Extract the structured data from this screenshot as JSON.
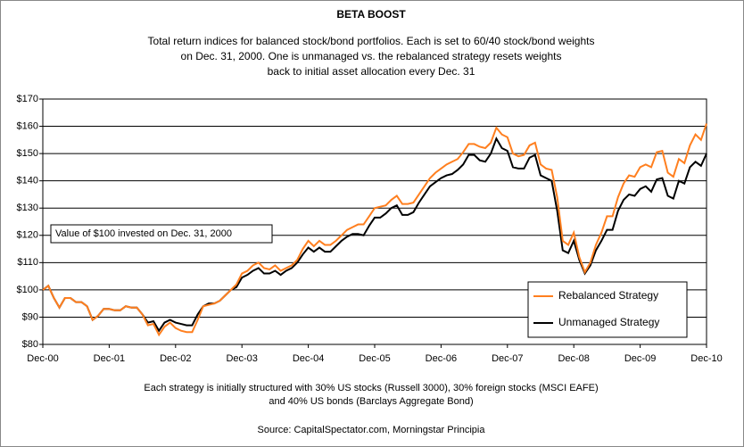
{
  "chart_data": {
    "type": "line",
    "title": "BETA BOOST",
    "subtitle": [
      "Total return indices for balanced stock/bond portfolios. Each is set to 60/40 stock/bond weights",
      "on Dec. 31, 2000. One is unmanaged vs. the rebalanced strategy resets weights",
      "back to initial asset allocation every Dec. 31"
    ],
    "annotation": "Value of $100 invested on Dec. 31, 2000",
    "footnote": [
      "Each strategy is initially structured with 30% US stocks (Russell 3000), 30% foreign stocks (MSCI EAFE)",
      "and 40% US bonds (Barclays Aggregate Bond)"
    ],
    "source": "Source: CapitalSpectator.com, Morningstar Principia",
    "categories": [
      "Dec-00",
      null,
      null,
      null,
      null,
      null,
      null,
      null,
      null,
      null,
      null,
      null,
      "Dec-01",
      null,
      null,
      null,
      null,
      null,
      null,
      null,
      null,
      null,
      null,
      null,
      "Dec-02",
      null,
      null,
      null,
      null,
      null,
      null,
      null,
      null,
      null,
      null,
      null,
      "Dec-03",
      null,
      null,
      null,
      null,
      null,
      null,
      null,
      null,
      null,
      null,
      null,
      "Dec-04",
      null,
      null,
      null,
      null,
      null,
      null,
      null,
      null,
      null,
      null,
      null,
      "Dec-05",
      null,
      null,
      null,
      null,
      null,
      null,
      null,
      null,
      null,
      null,
      null,
      "Dec-06",
      null,
      null,
      null,
      null,
      null,
      null,
      null,
      null,
      null,
      null,
      null,
      "Dec-07",
      null,
      null,
      null,
      null,
      null,
      null,
      null,
      null,
      null,
      null,
      null,
      "Dec-08",
      null,
      null,
      null,
      null,
      null,
      null,
      null,
      null,
      null,
      null,
      null,
      "Dec-09",
      null,
      null,
      null,
      null,
      null,
      null,
      null,
      null,
      null,
      null,
      null,
      "Dec-10"
    ],
    "series": [
      {
        "name": "Rebalanced Strategy",
        "color": "#ff7f1f",
        "values": [
          100,
          101.5,
          97,
          93.5,
          97,
          97,
          95.5,
          95.5,
          94,
          89,
          90.5,
          93,
          93,
          92.5,
          92.5,
          94,
          93.5,
          93.5,
          91,
          87,
          87.5,
          83.5,
          86.5,
          88,
          86,
          85,
          84.5,
          84.5,
          89,
          94,
          94.5,
          95,
          96,
          98,
          100,
          102,
          106,
          107,
          109,
          110,
          108,
          107.5,
          109,
          107,
          108,
          109,
          111,
          115,
          118,
          116,
          118,
          116.5,
          116.5,
          118,
          120,
          122,
          123,
          124,
          124,
          127,
          130,
          130.5,
          131,
          133,
          134.5,
          131.5,
          131.5,
          132,
          135,
          138,
          141,
          143,
          144.5,
          146,
          147,
          148,
          150.5,
          153.5,
          153.5,
          152.5,
          152,
          154,
          159.5,
          157,
          156,
          150,
          149,
          149.5,
          153,
          154,
          146,
          144.5,
          144,
          134,
          118,
          116.5,
          121,
          112,
          106.5,
          110,
          116.5,
          121,
          127,
          127,
          134,
          139,
          142,
          141.5,
          145,
          146,
          145,
          150.5,
          151,
          143,
          141.5,
          148,
          146.5,
          153,
          157,
          155,
          161
        ]
      },
      {
        "name": "Unmanaged Strategy",
        "color": "#000000",
        "values": [
          100,
          101.5,
          97,
          93.5,
          97,
          97,
          95.5,
          95.5,
          94,
          89,
          90.5,
          93,
          93,
          92.5,
          92.5,
          94,
          93.5,
          93.5,
          91,
          88,
          88.5,
          85,
          88,
          89,
          88,
          87.5,
          87,
          87,
          91,
          94,
          95,
          95,
          96,
          98,
          100,
          101,
          104.5,
          105.5,
          107,
          108,
          106,
          106,
          107,
          105.5,
          107,
          108,
          110,
          113,
          115.5,
          114,
          115.5,
          114,
          114,
          116,
          118,
          119.5,
          120.5,
          120.5,
          120,
          123.5,
          126.5,
          126.5,
          128,
          130,
          131,
          127.5,
          127.5,
          128.5,
          132,
          135,
          138,
          139.5,
          141,
          142,
          142.5,
          144,
          146,
          149.5,
          149.5,
          147.5,
          147,
          150,
          155.5,
          152,
          151,
          145,
          144.5,
          144.5,
          148.5,
          149.5,
          142,
          141,
          140,
          129,
          114.5,
          113.5,
          118,
          111,
          106,
          109,
          114.5,
          118,
          122,
          122,
          129,
          133,
          135,
          134.5,
          137,
          138,
          136,
          140.5,
          141,
          134.5,
          133.5,
          140,
          139,
          145,
          147,
          145.5,
          150
        ]
      }
    ],
    "ylim": [
      80,
      170
    ],
    "yticks": [
      {
        "value": 80,
        "label": "$80"
      },
      {
        "value": 90,
        "label": "$90"
      },
      {
        "value": 100,
        "label": "$100"
      },
      {
        "value": 110,
        "label": "$110"
      },
      {
        "value": 120,
        "label": "$120"
      },
      {
        "value": 130,
        "label": "$130"
      },
      {
        "value": 140,
        "label": "$140"
      },
      {
        "value": 150,
        "label": "$150"
      },
      {
        "value": 160,
        "label": "$160"
      },
      {
        "value": 170,
        "label": "$170"
      }
    ],
    "grid": true,
    "legend": "lower-right"
  }
}
